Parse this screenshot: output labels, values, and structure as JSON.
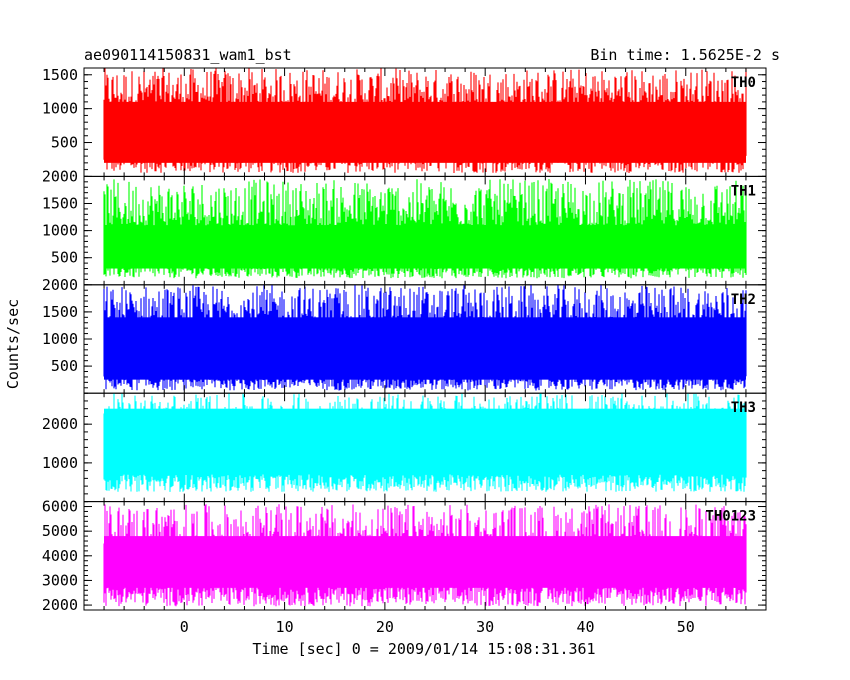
{
  "title_left": "ae090114150831_wam1_bst",
  "title_right": "Bin time: 1.5625E-2 s",
  "ylabel": "Counts/sec",
  "xlabel": "Time [sec] 0 = 2009/01/14 15:08:31.361",
  "chart_data": [
    {
      "type": "line",
      "name": "TH0",
      "color": "#ff0000",
      "x_range": [
        -8,
        56
      ],
      "ylim": [
        0,
        1600
      ],
      "yticks": [
        500,
        1000,
        1500
      ],
      "ytick_labels": [
        "500",
        "1000",
        "1500"
      ],
      "band_min": [
        50,
        350
      ],
      "band_max": [
        1050,
        1600
      ],
      "core": [
        200,
        1100
      ]
    },
    {
      "type": "line",
      "name": "TH1",
      "color": "#00ff00",
      "x_range": [
        -8,
        56
      ],
      "ylim": [
        0,
        2000
      ],
      "yticks": [
        500,
        1000,
        1500,
        2000
      ],
      "ytick_labels": [
        "500",
        "1000",
        "1500",
        "2000"
      ],
      "band_min": [
        120,
        380
      ],
      "band_max": [
        1100,
        1950
      ],
      "core": [
        300,
        1000
      ]
    },
    {
      "type": "line",
      "name": "TH2",
      "color": "#0000ff",
      "x_range": [
        -8,
        56
      ],
      "ylim": [
        0,
        2000
      ],
      "yticks": [
        500,
        1000,
        1500,
        2000
      ],
      "ytick_labels": [
        "500",
        "1000",
        "1500",
        "2000"
      ],
      "band_min": [
        50,
        350
      ],
      "band_max": [
        1300,
        2000
      ],
      "core": [
        250,
        1400
      ]
    },
    {
      "type": "line",
      "name": "TH3",
      "color": "#00ffff",
      "x_range": [
        -8,
        56
      ],
      "ylim": [
        0,
        2800
      ],
      "yticks": [
        1000,
        2000
      ],
      "ytick_labels": [
        "1000",
        "2000"
      ],
      "band_min": [
        250,
        700
      ],
      "band_max": [
        2000,
        2800
      ],
      "core": [
        700,
        2400
      ]
    },
    {
      "type": "line",
      "name": "TH0123",
      "color": "#ff00ff",
      "x_range": [
        -8,
        56
      ],
      "ylim": [
        1800,
        6200
      ],
      "yticks": [
        2000,
        3000,
        4000,
        5000,
        6000
      ],
      "ytick_labels": [
        "2000",
        "3000",
        "4000",
        "5000",
        "6000"
      ],
      "band_min": [
        1950,
        2800
      ],
      "band_max": [
        4400,
        6100
      ],
      "core": [
        2700,
        4800
      ]
    }
  ],
  "xaxis": {
    "ticks": [
      0,
      10,
      20,
      30,
      40,
      50
    ],
    "tick_labels": [
      "0",
      "10",
      "20",
      "30",
      "40",
      "50"
    ],
    "minor_step": 2,
    "range": [
      -10,
      58
    ],
    "data_start": -8,
    "data_end": 56
  }
}
